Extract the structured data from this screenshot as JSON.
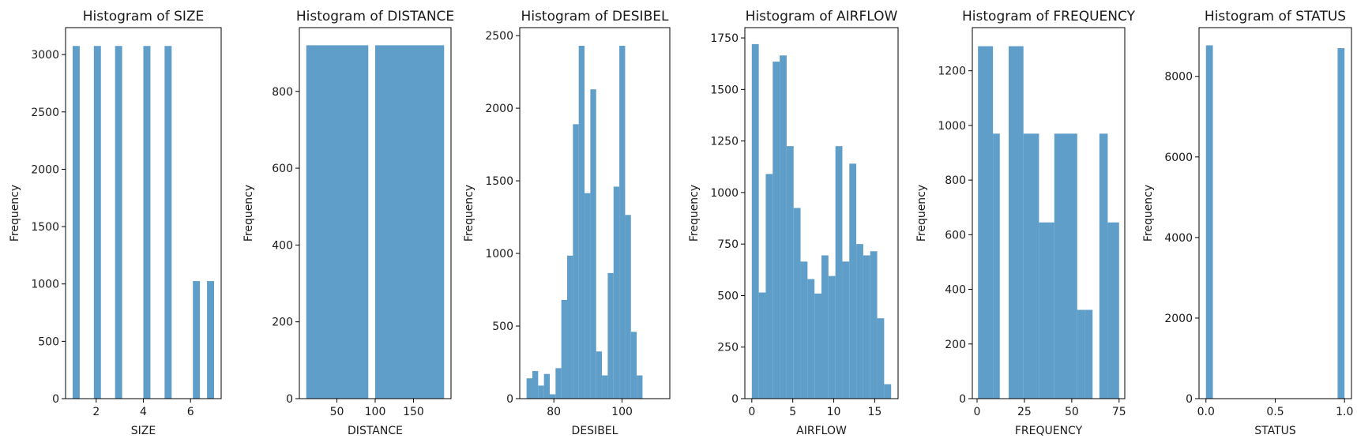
{
  "bar_color": "#5f9ec9",
  "chart_data": [
    {
      "type": "bar",
      "title": "Histogram of SIZE",
      "xlabel": "SIZE",
      "ylabel": "Frequency",
      "xlim": [
        0.7,
        7.3
      ],
      "ylim": [
        0,
        3235
      ],
      "xticks": [
        2,
        4,
        6
      ],
      "yticks": [
        0,
        500,
        1000,
        1500,
        2000,
        2500,
        3000
      ],
      "bins": [
        {
          "x0": 1.0,
          "x1": 1.3,
          "count": 3075
        },
        {
          "x0": 1.6,
          "x1": 1.9,
          "count": 0
        },
        {
          "x0": 1.9,
          "x1": 2.2,
          "count": 3075
        },
        {
          "x0": 2.8,
          "x1": 3.1,
          "count": 3075
        },
        {
          "x0": 4.0,
          "x1": 4.3,
          "count": 3075
        },
        {
          "x0": 4.9,
          "x1": 5.2,
          "count": 3075
        },
        {
          "x0": 6.1,
          "x1": 6.4,
          "count": 1025
        },
        {
          "x0": 6.7,
          "x1": 7.0,
          "count": 1025
        }
      ]
    },
    {
      "type": "bar",
      "title": "Histogram of DISTANCE",
      "xlabel": "DISTANCE",
      "ylabel": "Frequency",
      "xlim": [
        1,
        199
      ],
      "ylim": [
        0,
        966
      ],
      "xticks": [
        50,
        100,
        150
      ],
      "yticks": [
        0,
        200,
        400,
        600,
        800
      ],
      "bins": [
        {
          "x0": 10,
          "x1": 91,
          "count": 920
        },
        {
          "x0": 91,
          "x1": 100,
          "count": 0
        },
        {
          "x0": 100,
          "x1": 190,
          "count": 920
        }
      ]
    },
    {
      "type": "bar",
      "title": "Histogram of DESIBEL",
      "xlabel": "DESIBEL",
      "ylabel": "Frequency",
      "xlim": [
        70,
        114
      ],
      "ylim": [
        0,
        2555
      ],
      "xticks": [
        80,
        100
      ],
      "yticks": [
        0,
        500,
        1000,
        1500,
        2000,
        2500
      ],
      "bins": [
        {
          "x0": 72,
          "x1": 73.7,
          "count": 140
        },
        {
          "x0": 73.7,
          "x1": 75.4,
          "count": 190
        },
        {
          "x0": 75.4,
          "x1": 77.1,
          "count": 90
        },
        {
          "x0": 77.1,
          "x1": 78.8,
          "count": 170
        },
        {
          "x0": 78.8,
          "x1": 80.5,
          "count": 30
        },
        {
          "x0": 80.5,
          "x1": 82.2,
          "count": 210
        },
        {
          "x0": 82.2,
          "x1": 83.9,
          "count": 680
        },
        {
          "x0": 83.9,
          "x1": 85.6,
          "count": 985
        },
        {
          "x0": 85.6,
          "x1": 87.3,
          "count": 1890
        },
        {
          "x0": 87.3,
          "x1": 89.0,
          "count": 2430
        },
        {
          "x0": 89.0,
          "x1": 90.7,
          "count": 1415
        },
        {
          "x0": 90.7,
          "x1": 92.4,
          "count": 2130
        },
        {
          "x0": 92.4,
          "x1": 94.1,
          "count": 325
        },
        {
          "x0": 94.1,
          "x1": 95.8,
          "count": 160
        },
        {
          "x0": 95.8,
          "x1": 97.5,
          "count": 865
        },
        {
          "x0": 97.5,
          "x1": 99.2,
          "count": 1460
        },
        {
          "x0": 99.2,
          "x1": 100.9,
          "count": 2430
        },
        {
          "x0": 100.9,
          "x1": 102.6,
          "count": 1265
        },
        {
          "x0": 102.6,
          "x1": 104.3,
          "count": 460
        },
        {
          "x0": 104.3,
          "x1": 106.0,
          "count": 160
        }
      ]
    },
    {
      "type": "bar",
      "title": "Histogram of AIRFLOW",
      "xlabel": "AIRFLOW",
      "ylabel": "Frequency",
      "xlim": [
        -0.85,
        17.85
      ],
      "ylim": [
        0,
        1800
      ],
      "xticks": [
        0,
        5,
        10,
        15
      ],
      "yticks": [
        0,
        250,
        500,
        750,
        1000,
        1250,
        1500,
        1750
      ],
      "bins": [
        {
          "x0": 0.0,
          "x1": 0.85,
          "count": 1720
        },
        {
          "x0": 0.85,
          "x1": 1.7,
          "count": 515
        },
        {
          "x0": 1.7,
          "x1": 2.55,
          "count": 1090
        },
        {
          "x0": 2.55,
          "x1": 3.4,
          "count": 1635
        },
        {
          "x0": 3.4,
          "x1": 4.25,
          "count": 1665
        },
        {
          "x0": 4.25,
          "x1": 5.1,
          "count": 1225
        },
        {
          "x0": 5.1,
          "x1": 5.95,
          "count": 925
        },
        {
          "x0": 5.95,
          "x1": 6.8,
          "count": 665
        },
        {
          "x0": 6.8,
          "x1": 7.65,
          "count": 580
        },
        {
          "x0": 7.65,
          "x1": 8.5,
          "count": 510
        },
        {
          "x0": 8.5,
          "x1": 9.35,
          "count": 695
        },
        {
          "x0": 9.35,
          "x1": 10.2,
          "count": 595
        },
        {
          "x0": 10.2,
          "x1": 11.05,
          "count": 1225
        },
        {
          "x0": 11.05,
          "x1": 11.9,
          "count": 665
        },
        {
          "x0": 11.9,
          "x1": 12.75,
          "count": 1140
        },
        {
          "x0": 12.75,
          "x1": 13.6,
          "count": 750
        },
        {
          "x0": 13.6,
          "x1": 14.45,
          "count": 695
        },
        {
          "x0": 14.45,
          "x1": 15.3,
          "count": 715
        },
        {
          "x0": 15.3,
          "x1": 16.15,
          "count": 390
        },
        {
          "x0": 16.15,
          "x1": 17.0,
          "count": 70
        }
      ]
    },
    {
      "type": "bar",
      "title": "Histogram of FREQUENCY",
      "xlabel": "FREQUENCY",
      "ylabel": "Frequency",
      "xlim": [
        -2.5,
        78
      ],
      "ylim": [
        0,
        1358
      ],
      "xticks": [
        0,
        25,
        50,
        75
      ],
      "yticks": [
        0,
        200,
        400,
        600,
        800,
        1000,
        1200
      ],
      "bins": [
        {
          "x0": 0.5,
          "x1": 8.4,
          "count": 1290
        },
        {
          "x0": 8.4,
          "x1": 12.0,
          "count": 970
        },
        {
          "x0": 12.0,
          "x1": 16.7,
          "count": 0
        },
        {
          "x0": 16.7,
          "x1": 24.5,
          "count": 1290
        },
        {
          "x0": 24.5,
          "x1": 32.7,
          "count": 970
        },
        {
          "x0": 32.7,
          "x1": 40.8,
          "count": 645
        },
        {
          "x0": 40.8,
          "x1": 52.9,
          "count": 970
        },
        {
          "x0": 52.9,
          "x1": 56.9,
          "count": 325
        },
        {
          "x0": 56.9,
          "x1": 61.0,
          "count": 325
        },
        {
          "x0": 61.0,
          "x1": 64.6,
          "count": 0
        },
        {
          "x0": 64.6,
          "x1": 69.0,
          "count": 970
        },
        {
          "x0": 69.0,
          "x1": 75.0,
          "count": 645
        }
      ]
    },
    {
      "type": "bar",
      "title": "Histogram of STATUS",
      "xlabel": "STATUS",
      "ylabel": "Frequency",
      "xlim": [
        -0.05,
        1.05
      ],
      "ylim": [
        0,
        9210
      ],
      "xticks": [
        0.0,
        0.5,
        1.0
      ],
      "xtick_labels": [
        "0.0",
        "0.5",
        "1.0"
      ],
      "yticks": [
        0,
        2000,
        4000,
        6000,
        8000
      ],
      "bins": [
        {
          "x0": 0.0,
          "x1": 0.05,
          "count": 8770
        },
        {
          "x0": 0.95,
          "x1": 1.0,
          "count": 8700
        }
      ]
    }
  ]
}
